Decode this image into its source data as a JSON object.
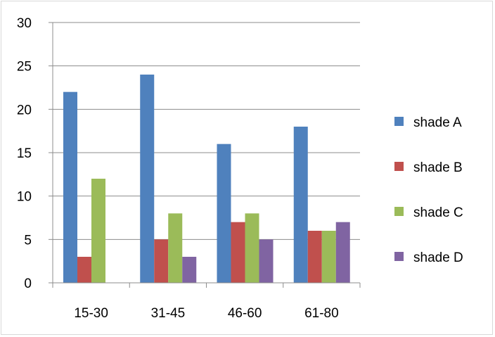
{
  "chart_data": {
    "type": "bar",
    "title": "",
    "xlabel": "",
    "ylabel": "",
    "categories": [
      "15-30",
      "31-45",
      "46-60",
      "61-80"
    ],
    "ylim": [
      0,
      30
    ],
    "yticks": [
      0,
      5,
      10,
      15,
      20,
      25,
      30
    ],
    "grid": true,
    "legend_position": "right",
    "series": [
      {
        "name": "shade A",
        "color": "#4f81bd",
        "values": [
          22,
          24,
          16,
          18
        ]
      },
      {
        "name": "shade B",
        "color": "#c0504d",
        "values": [
          3,
          5,
          7,
          6
        ]
      },
      {
        "name": "shade C",
        "color": "#9bbb59",
        "values": [
          12,
          8,
          8,
          6
        ]
      },
      {
        "name": "shade D",
        "color": "#8064a2",
        "values": [
          0,
          3,
          5,
          7
        ]
      }
    ]
  }
}
